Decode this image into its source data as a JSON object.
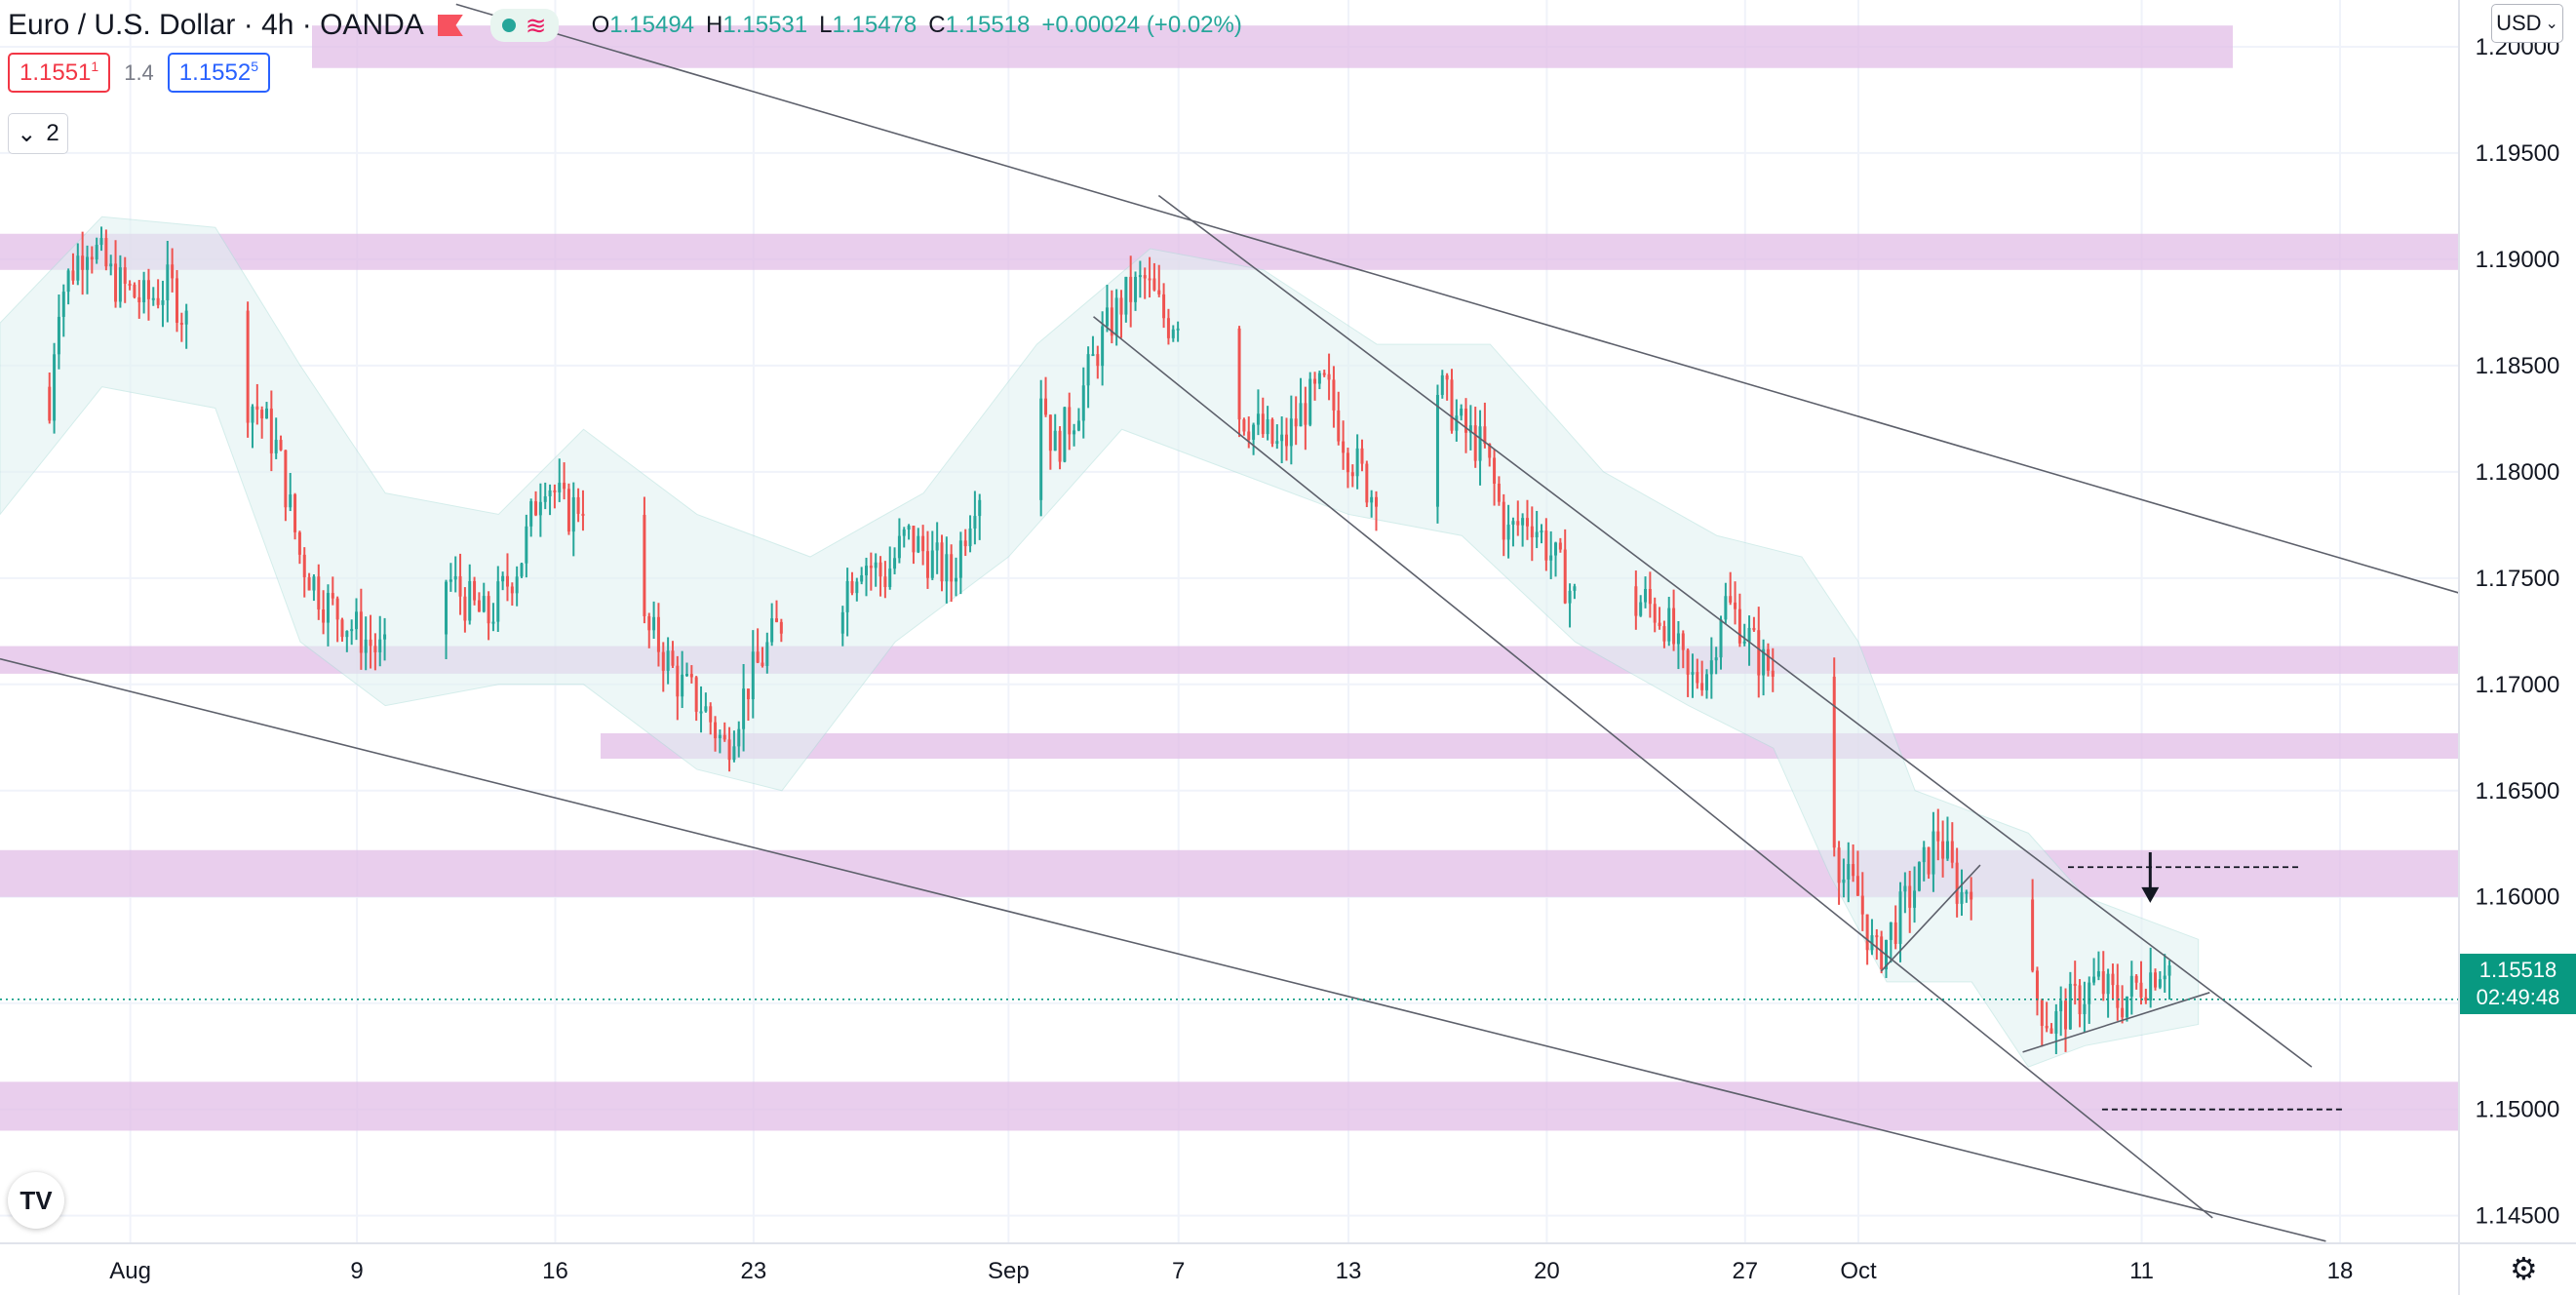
{
  "header": {
    "title": "Euro / U.S. Dollar · 4h · OANDA",
    "open_label": "O",
    "open": "1.15494",
    "high_label": "H",
    "high": "1.15531",
    "low_label": "L",
    "low": "1.15478",
    "close_label": "C",
    "close": "1.15518",
    "change": "+0.00024 (+0.02%)"
  },
  "price_boxes": {
    "bid_main": "1.1551",
    "bid_sup": "1",
    "spread": "1.4",
    "ask_main": "1.1552",
    "ask_sup": "5"
  },
  "indicator_toggle": {
    "count": "2"
  },
  "currency": "USD",
  "last_price": {
    "price": "1.15518",
    "countdown": "02:49:48"
  },
  "colors": {
    "up": "#26a69a",
    "down": "#ef5350",
    "zone": "#e1bee7",
    "band": "#e0f2f1",
    "last": "#089981"
  },
  "icons": {
    "flag": "flag-icon",
    "chevron": "chevron-down-icon",
    "settings": "gear-icon",
    "logo": "tradingview-logo"
  },
  "chart_data": {
    "type": "candlestick",
    "symbol": "EURUSD",
    "timeframe": "4h",
    "y_ticks": [
      "1.20000",
      "1.19500",
      "1.19000",
      "1.18500",
      "1.18000",
      "1.17500",
      "1.17000",
      "1.16500",
      "1.16000",
      "1.15500",
      "1.15000",
      "1.14500"
    ],
    "x_ticks": [
      {
        "label": "Aug",
        "day": 1
      },
      {
        "label": "9",
        "day": 9
      },
      {
        "label": "16",
        "day": 16
      },
      {
        "label": "23",
        "day": 23
      },
      {
        "label": "Sep",
        "day": 32
      },
      {
        "label": "7",
        "day": 38
      },
      {
        "label": "13",
        "day": 44
      },
      {
        "label": "20",
        "day": 51
      },
      {
        "label": "27",
        "day": 58
      },
      {
        "label": "Oct",
        "day": 62
      },
      {
        "label": "11",
        "day": 72
      },
      {
        "label": "18",
        "day": 79
      }
    ],
    "ylim": [
      1.1437,
      1.2022
    ],
    "xlim": [
      -3.6,
      83.2
    ],
    "close_path": [
      [
        -3.6,
        1.184
      ],
      [
        -2.6,
        1.1825
      ],
      [
        -2.1,
        1.177
      ],
      [
        -1.6,
        1.188
      ],
      [
        -0.5,
        1.191
      ],
      [
        0.4,
        1.189
      ],
      [
        1.5,
        1.188
      ],
      [
        2.4,
        1.1888
      ],
      [
        3.0,
        1.187
      ],
      [
        3.8,
        1.19
      ],
      [
        4.6,
        1.184
      ],
      [
        5.5,
        1.183
      ],
      [
        6.2,
        1.181
      ],
      [
        7.0,
        1.176
      ],
      [
        7.8,
        1.174
      ],
      [
        8.6,
        1.173
      ],
      [
        9.4,
        1.172
      ],
      [
        10.2,
        1.171
      ],
      [
        11.0,
        1.174
      ],
      [
        12.2,
        1.175
      ],
      [
        12.8,
        1.174
      ],
      [
        13.6,
        1.173
      ],
      [
        14.8,
        1.176
      ],
      [
        15.6,
        1.18
      ],
      [
        16.4,
        1.178
      ],
      [
        17.2,
        1.179
      ],
      [
        18.0,
        1.177
      ],
      [
        18.8,
        1.173
      ],
      [
        19.6,
        1.172
      ],
      [
        20.4,
        1.17
      ],
      [
        21.2,
        1.169
      ],
      [
        22.0,
        1.167
      ],
      [
        22.8,
        1.17
      ],
      [
        23.6,
        1.172
      ],
      [
        24.4,
        1.174
      ],
      [
        25.2,
        1.175
      ],
      [
        26.0,
        1.174
      ],
      [
        26.8,
        1.176
      ],
      [
        27.6,
        1.175
      ],
      [
        28.4,
        1.177
      ],
      [
        29.2,
        1.176
      ],
      [
        30.0,
        1.175
      ],
      [
        30.8,
        1.179
      ],
      [
        31.6,
        1.18
      ],
      [
        32.4,
        1.183
      ],
      [
        33.0,
        1.185
      ],
      [
        33.6,
        1.181
      ],
      [
        34.4,
        1.183
      ],
      [
        35.2,
        1.186
      ],
      [
        36.0,
        1.188
      ],
      [
        36.8,
        1.189
      ],
      [
        37.6,
        1.187
      ],
      [
        38.4,
        1.188
      ],
      [
        39.2,
        1.185
      ],
      [
        40.0,
        1.183
      ],
      [
        40.8,
        1.182
      ],
      [
        41.6,
        1.181
      ],
      [
        42.4,
        1.183
      ],
      [
        43.2,
        1.184
      ],
      [
        44.0,
        1.181
      ],
      [
        44.8,
        1.179
      ],
      [
        45.6,
        1.181
      ],
      [
        46.4,
        1.183
      ],
      [
        47.2,
        1.184
      ],
      [
        48.0,
        1.182
      ],
      [
        48.8,
        1.181
      ],
      [
        49.6,
        1.177
      ],
      [
        50.4,
        1.178
      ],
      [
        51.2,
        1.176
      ],
      [
        52.0,
        1.174
      ],
      [
        52.8,
        1.172
      ],
      [
        53.6,
        1.173
      ],
      [
        54.4,
        1.174
      ],
      [
        55.2,
        1.173
      ],
      [
        56.0,
        1.17
      ],
      [
        56.8,
        1.171
      ],
      [
        57.2,
        1.174
      ],
      [
        57.8,
        1.173
      ],
      [
        58.6,
        1.171
      ],
      [
        59.4,
        1.17
      ],
      [
        60.2,
        1.169
      ],
      [
        60.8,
        1.166
      ],
      [
        61.4,
        1.161
      ],
      [
        62.0,
        1.16
      ],
      [
        62.6,
        1.157
      ],
      [
        63.4,
        1.159
      ],
      [
        64.2,
        1.161
      ],
      [
        64.8,
        1.163
      ],
      [
        65.6,
        1.16
      ],
      [
        66.4,
        1.162
      ],
      [
        67.2,
        1.16
      ],
      [
        68.0,
        1.156
      ],
      [
        68.8,
        1.154
      ],
      [
        69.6,
        1.155
      ],
      [
        70.4,
        1.156
      ],
      [
        71.2,
        1.155
      ],
      [
        72.0,
        1.156
      ],
      [
        72.8,
        1.157
      ],
      [
        73.5,
        1.156
      ],
      [
        74.0,
        1.1552
      ]
    ],
    "bands": {
      "upper": [
        [
          -3.6,
          1.187
        ],
        [
          0,
          1.192
        ],
        [
          4,
          1.1915
        ],
        [
          7,
          1.185
        ],
        [
          10,
          1.179
        ],
        [
          14,
          1.178
        ],
        [
          17,
          1.182
        ],
        [
          21,
          1.178
        ],
        [
          25,
          1.176
        ],
        [
          29,
          1.179
        ],
        [
          33,
          1.186
        ],
        [
          37,
          1.1905
        ],
        [
          41,
          1.1895
        ],
        [
          45,
          1.186
        ],
        [
          49,
          1.186
        ],
        [
          53,
          1.18
        ],
        [
          57,
          1.177
        ],
        [
          60,
          1.176
        ],
        [
          62,
          1.172
        ],
        [
          64,
          1.165
        ],
        [
          66,
          1.164
        ],
        [
          68,
          1.163
        ],
        [
          70,
          1.16
        ],
        [
          72,
          1.159
        ],
        [
          74,
          1.158
        ]
      ],
      "lower": [
        [
          -3.6,
          1.178
        ],
        [
          0,
          1.184
        ],
        [
          4,
          1.183
        ],
        [
          7,
          1.172
        ],
        [
          10,
          1.169
        ],
        [
          14,
          1.17
        ],
        [
          17,
          1.17
        ],
        [
          21,
          1.166
        ],
        [
          24,
          1.165
        ],
        [
          28,
          1.172
        ],
        [
          32,
          1.176
        ],
        [
          36,
          1.182
        ],
        [
          40,
          1.18
        ],
        [
          44,
          1.178
        ],
        [
          48,
          1.177
        ],
        [
          52,
          1.172
        ],
        [
          56,
          1.169
        ],
        [
          59,
          1.167
        ],
        [
          61,
          1.161
        ],
        [
          63,
          1.156
        ],
        [
          66,
          1.156
        ],
        [
          68,
          1.152
        ],
        [
          70,
          1.153
        ],
        [
          72,
          1.1535
        ],
        [
          74,
          1.154
        ]
      ]
    },
    "zones": [
      {
        "x0": "chart-left-edge-sep",
        "from": 1.199,
        "to": 1.201
      },
      {
        "from": 1.1895,
        "to": 1.1912
      },
      {
        "from": 1.1705,
        "to": 1.1718
      },
      {
        "from": 1.1665,
        "to": 1.1677
      },
      {
        "from": 1.16,
        "to": 1.1622
      },
      {
        "from": 1.149,
        "to": 1.1513
      }
    ],
    "trendlines": [
      {
        "p1": [
          12.5,
          1.202
        ],
        "p2": [
          83.2,
          1.1743
        ]
      },
      {
        "p1": [
          -3.6,
          1.1712
        ],
        "p2": [
          78.5,
          1.1438
        ]
      },
      {
        "p1": [
          35.0,
          1.1873
        ],
        "p2": [
          74.5,
          1.1449
        ]
      },
      {
        "p1": [
          37.3,
          1.193
        ],
        "p2": [
          78.0,
          1.152
        ]
      },
      {
        "p1": [
          62.8,
          1.1565
        ],
        "p2": [
          66.3,
          1.1615
        ]
      },
      {
        "p1": [
          67.8,
          1.1527
        ],
        "p2": [
          74.4,
          1.1555
        ]
      }
    ],
    "targets": [
      {
        "price": 1.1614,
        "from": 69.4,
        "to": 77.6
      },
      {
        "price": 1.15,
        "from": 70.6,
        "to": 79.2
      }
    ],
    "arrow": {
      "x": 72.3,
      "from": 1.1621,
      "to": 1.1599
    },
    "last_close": 1.15518
  }
}
